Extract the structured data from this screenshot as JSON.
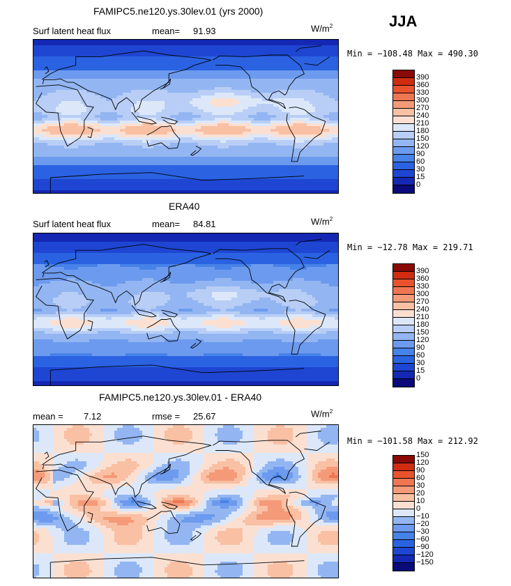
{
  "season": "JJA",
  "colors": {
    "full": [
      "#0a0a7a",
      "#1428b4",
      "#1e46d2",
      "#2a62e2",
      "#4682e8",
      "#6c9aee",
      "#93b6f2",
      "#b8cef6",
      "#dce8fa",
      "#fbe0d2",
      "#f9c0a4",
      "#f49a78",
      "#ee7652",
      "#e8532e",
      "#d02c12",
      "#8a0a06"
    ],
    "diff": [
      "#0a0a7a",
      "#1428b4",
      "#1e46d2",
      "#2a62e2",
      "#4682e8",
      "#6c9aee",
      "#93b6f2",
      "#dce8fa",
      "#fbe0d2",
      "#f9c0a4",
      "#f49a78",
      "#ee7652",
      "#e8532e",
      "#d02c12",
      "#8a0a06"
    ]
  },
  "panels": [
    {
      "id": "model",
      "title": "FAMIPC5.ne120.ys.30lev.01 (yrs 2000)",
      "left_label": "Surf latent heat flux",
      "mean_label": "mean=",
      "mean_value": "91.93",
      "units": "W/m",
      "units_sup": "2",
      "minmax": "Min = −108.48 Max = 490.30",
      "map_type": "full"
    },
    {
      "id": "obs",
      "title": "ERA40",
      "left_label": "Surf latent heat flux",
      "mean_label": "mean=",
      "mean_value": "84.81",
      "units": "W/m",
      "units_sup": "2",
      "minmax": "Min = −12.78 Max = 219.71",
      "map_type": "full"
    },
    {
      "id": "diff",
      "title": "FAMIPC5.ne120.ys.30lev.01 - ERA40",
      "left_label": "mean =",
      "mean_label": "",
      "mean_value": "7.12",
      "rmse_label": "rmse =",
      "rmse_value": "25.67",
      "units": "W/m",
      "units_sup": "2",
      "minmax": "Min = −101.58 Max = 212.92",
      "map_type": "diff"
    }
  ],
  "chart_data": [
    {
      "type": "heatmap",
      "title": "FAMIPC5.ne120.ys.30lev.01 (yrs 2000)",
      "variable": "Surf latent heat flux",
      "units": "W/m2",
      "mean": 91.93,
      "min": -108.48,
      "max": 490.3,
      "colorbar_levels": [
        "0",
        "15",
        "30",
        "60",
        "90",
        "120",
        "150",
        "180",
        "210",
        "240",
        "270",
        "300",
        "330",
        "360",
        "390"
      ]
    },
    {
      "type": "heatmap",
      "title": "ERA40",
      "variable": "Surf latent heat flux",
      "units": "W/m2",
      "mean": 84.81,
      "min": -12.78,
      "max": 219.71,
      "colorbar_levels": [
        "0",
        "15",
        "30",
        "60",
        "90",
        "120",
        "150",
        "180",
        "210",
        "240",
        "270",
        "300",
        "330",
        "360",
        "390"
      ]
    },
    {
      "type": "heatmap",
      "title": "FAMIPC5.ne120.ys.30lev.01 - ERA40",
      "units": "W/m2",
      "mean": 7.12,
      "rmse": 25.67,
      "min": -101.58,
      "max": 212.92,
      "colorbar_levels": [
        "−150",
        "−120",
        "−90",
        "−60",
        "−30",
        "−20",
        "−10",
        "0",
        "10",
        "20",
        "30",
        "60",
        "90",
        "120",
        "150"
      ]
    }
  ]
}
